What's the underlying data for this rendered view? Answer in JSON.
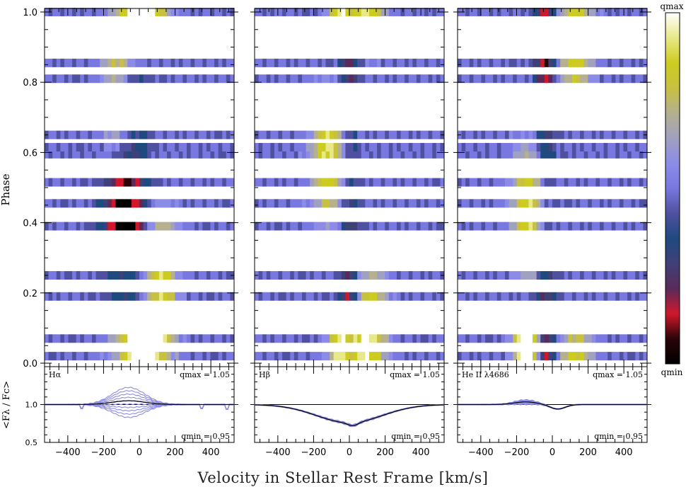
{
  "chart_data": [
    {
      "type": "heatmap",
      "panel": "top",
      "ylabel": "Phase",
      "ylim": [
        -0.01,
        1.01
      ],
      "y_ticks": [
        "0.0",
        "0.2",
        "0.4",
        "0.6",
        "0.8",
        "1.0"
      ],
      "xlim": [
        -530,
        530
      ],
      "phases": [
        0.02,
        0.07,
        0.19,
        0.25,
        0.39,
        0.455,
        0.515,
        0.595,
        0.615,
        0.65,
        0.81,
        0.855,
        1.0
      ],
      "colorbar": {
        "max_label": "qmax",
        "min_label": "qmin",
        "colors": [
          "#000000",
          "#2a0408",
          "#d0182c",
          "#5a2a5a",
          "#404078",
          "#1e4a80",
          "#5050a0",
          "#7878e0",
          "#8c8ce8",
          "#a0a0c0",
          "#b4b090",
          "#c8c040",
          "#cccc20",
          "#e8e888",
          "#ffffff"
        ]
      },
      "panels": [
        {
          "name": "Hα",
          "absorption_center": -80,
          "absorption_halfwidth": 160,
          "emission_center": 120,
          "profile_kind": "ha"
        },
        {
          "name": "Hβ",
          "absorption_center": 0,
          "absorption_halfwidth": 70,
          "emission_center": 120,
          "profile_kind": "hb"
        },
        {
          "name": "He II λ4686",
          "absorption_center": -40,
          "absorption_halfwidth": 80,
          "emission_center": 130,
          "profile_kind": "he"
        }
      ]
    },
    {
      "type": "line",
      "panel": "bottom",
      "ylabel": "<Fλ / Fc>",
      "ylim": [
        0.5,
        1.5
      ],
      "y_ticks": [
        "0.5",
        "1.0"
      ],
      "xlabel": "Velocity in Stellar Rest Frame [km/s]",
      "x_ticks": [
        "-400",
        "-200",
        "0",
        "200",
        "400"
      ],
      "x_tick_values": [
        -400,
        -200,
        0,
        200,
        400
      ],
      "xlim": [
        -530,
        530
      ],
      "qmax_text": "qmax = 1.05",
      "qmin_text": "qmin = 0.95",
      "panel_labels": [
        "Hα",
        "Hβ",
        "He II λ4686"
      ]
    }
  ]
}
